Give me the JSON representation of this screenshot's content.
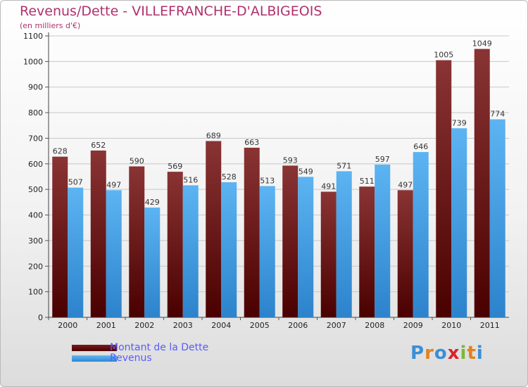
{
  "title": "Revenus/Dette - VILLEFRANCHE-D'ALBIGEOIS",
  "subtitle": "(en milliers d'€)",
  "logo_text": "Proxiti",
  "colors": {
    "title": "#b0306e",
    "dette": "#6b0f0f",
    "revenus": "#4ba6ea",
    "legend_text": "#5a5aff"
  },
  "chart_data": {
    "type": "bar",
    "categories": [
      "2000",
      "2001",
      "2002",
      "2003",
      "2004",
      "2005",
      "2006",
      "2007",
      "2008",
      "2009",
      "2010",
      "2011"
    ],
    "series": [
      {
        "name": "Montant de la Dette",
        "values": [
          628,
          652,
          590,
          569,
          689,
          663,
          593,
          491,
          511,
          497,
          1005,
          1049
        ]
      },
      {
        "name": "Revenus",
        "values": [
          507,
          497,
          429,
          516,
          528,
          513,
          549,
          571,
          597,
          646,
          739,
          774
        ]
      }
    ],
    "yticks": [
      0,
      100,
      200,
      300,
      400,
      500,
      600,
      700,
      800,
      900,
      1000,
      1100
    ],
    "ylim": [
      0,
      1100
    ],
    "grid": true,
    "legend_position": "bottom-left"
  }
}
